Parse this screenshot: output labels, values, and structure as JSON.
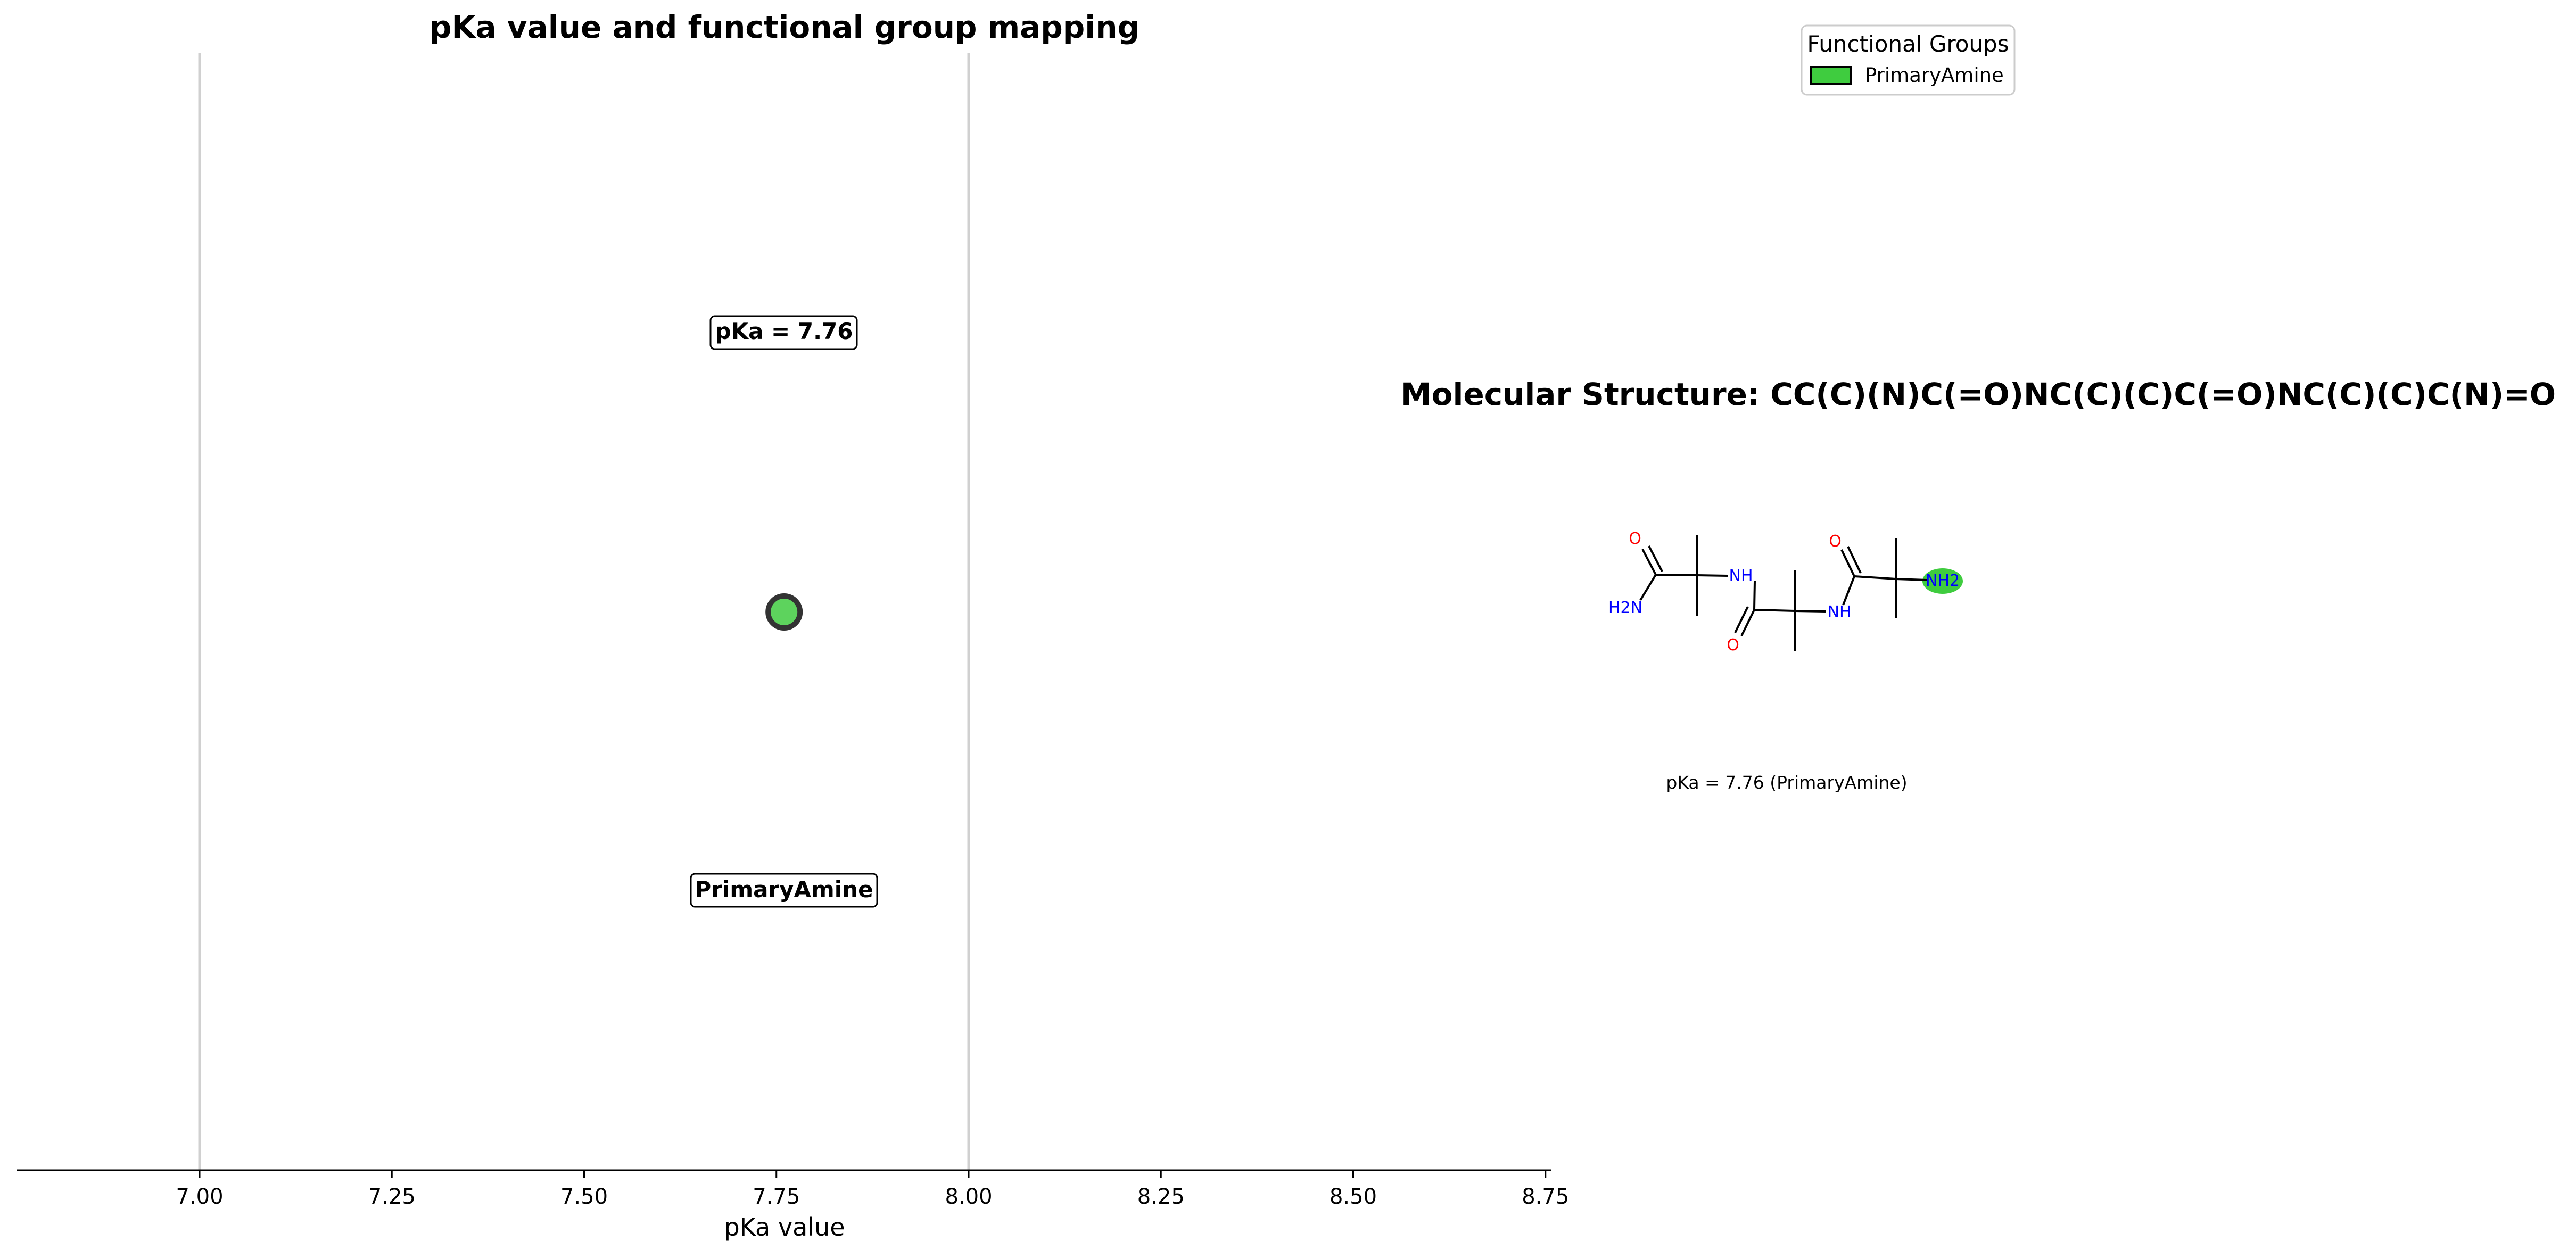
{
  "chart_data": [
    {
      "type": "scatter",
      "title": "pKa value and functional group mapping",
      "xlabel": "pKa value",
      "ylabel": "",
      "xlim": [
        6.76,
        8.76
      ],
      "xticks": [
        "7.00",
        "7.25",
        "7.50",
        "7.75",
        "8.00",
        "8.25",
        "8.50",
        "8.75"
      ],
      "reference_lines_x": [
        7.0,
        8.0
      ],
      "points": [
        {
          "x": 7.76,
          "group": "PrimaryAmine",
          "color": "#5dd35d"
        }
      ],
      "value_label": "pKa = 7.76",
      "group_label": "PrimaryAmine",
      "grid": false,
      "yaxis_visible": false
    }
  ],
  "legend": {
    "title": "Functional Groups",
    "entries": [
      {
        "label": "PrimaryAmine",
        "color": "#3fcc3f"
      }
    ]
  },
  "molecule": {
    "title": "Molecular Structure: CC(C)(N)C(=O)NC(C)(C)C(=O)NC(C)(C)C(N)=O",
    "smiles": "CC(C)(N)C(=O)NC(C)(C)C(=O)NC(C)(C)C(N)=O",
    "atoms": {
      "o": "O",
      "h2n": "H2N",
      "nh": "NH",
      "nh2": "NH2"
    },
    "highlight_color": "#3fcc3f",
    "caption": "pKa = 7.76 (PrimaryAmine)"
  },
  "colors": {
    "oxygen": "#ff0000",
    "nitrogen": "#0000ff",
    "bond": "#000000"
  }
}
